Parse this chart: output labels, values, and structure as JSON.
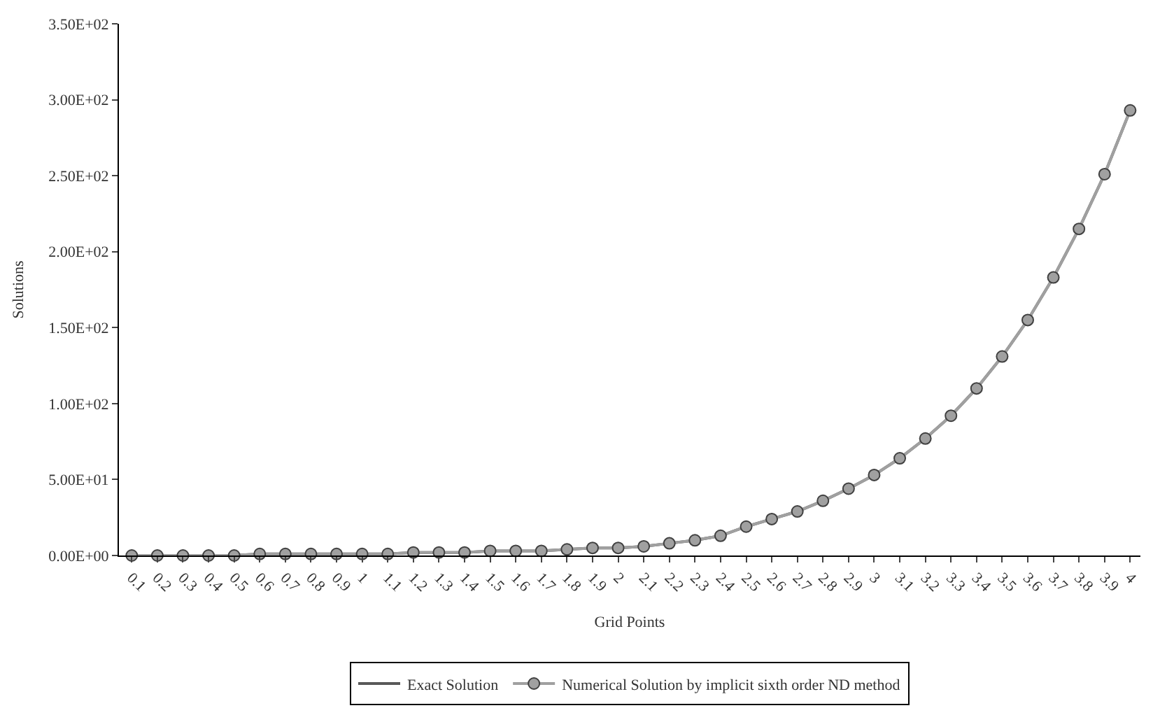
{
  "chart_data": {
    "type": "line",
    "xlabel": "Grid Points",
    "ylabel": "Solutions",
    "categories": [
      "0.1",
      "0.2",
      "0.3",
      "0.4",
      "0.5",
      "0.6",
      "0.7",
      "0.8",
      "0.9",
      "1",
      "1.1",
      "1.2",
      "1.3",
      "1.4",
      "1.5",
      "1.6",
      "1.7",
      "1.8",
      "1.9",
      "2",
      "2.1",
      "2.2",
      "2.3",
      "2.4",
      "2.5",
      "2.6",
      "2.7",
      "2.8",
      "2.9",
      "3",
      "3.1",
      "3.2",
      "3.3",
      "3.4",
      "3.5",
      "3.6",
      "3.7",
      "3.8",
      "3.9",
      "4"
    ],
    "series": [
      {
        "name": "Exact Solution",
        "color": "#595959",
        "marker": "none",
        "values": [
          0,
          0,
          0,
          0,
          0,
          1,
          1,
          1,
          1,
          1,
          1,
          2,
          2,
          2,
          3,
          3,
          3,
          4,
          5,
          5,
          6,
          8,
          10,
          13,
          19,
          24,
          29,
          36,
          44,
          53,
          64,
          77,
          92,
          110,
          131,
          155,
          183,
          215,
          251,
          293
        ]
      },
      {
        "name": "Numerical Solution by implicit sixth order ND method",
        "color": "#a0a0a0",
        "marker": "circle",
        "values": [
          0,
          0,
          0,
          0,
          0,
          1,
          1,
          1,
          1,
          1,
          1,
          2,
          2,
          2,
          3,
          3,
          3,
          4,
          5,
          5,
          6,
          8,
          10,
          13,
          19,
          24,
          29,
          36,
          44,
          53,
          64,
          77,
          92,
          110,
          131,
          155,
          183,
          215,
          251,
          293
        ]
      }
    ],
    "ylim": [
      0,
      350
    ],
    "yticks": [
      {
        "value": 0,
        "label": "0.00E+00"
      },
      {
        "value": 50,
        "label": "5.00E+01"
      },
      {
        "value": 100,
        "label": "1.00E+02"
      },
      {
        "value": 150,
        "label": "1.50E+02"
      },
      {
        "value": 200,
        "label": "2.00E+02"
      },
      {
        "value": 250,
        "label": "2.50E+02"
      },
      {
        "value": 300,
        "label": "3.00E+02"
      },
      {
        "value": 350,
        "label": "3.50E+02"
      }
    ],
    "legend": "bottom"
  }
}
